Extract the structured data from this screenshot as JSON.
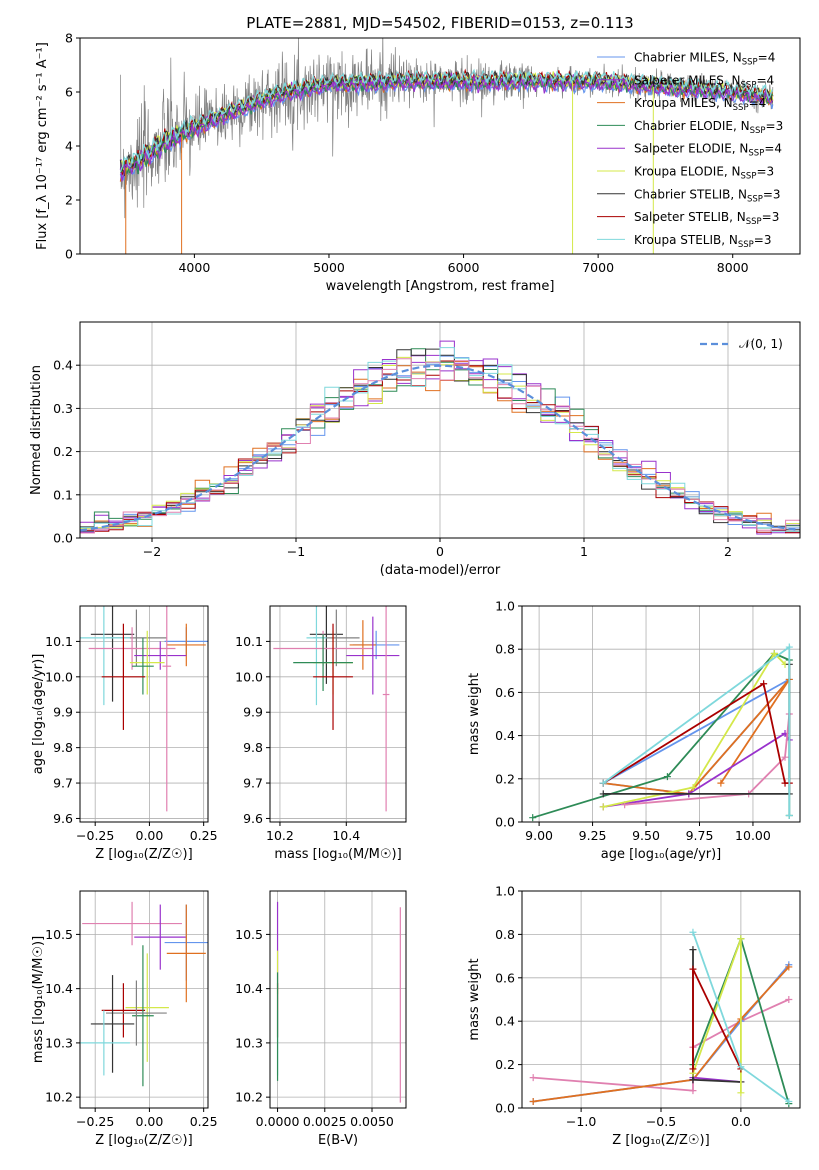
{
  "colors": {
    "chabrier_miles": "#6495ED",
    "salpeter_miles": "#9932CC",
    "kroupa_miles": "#E07020",
    "chabrier_elodie": "#2E8B57",
    "salpeter_elodie": "#9932CC",
    "kroupa_elodie": "#D4E84A",
    "chabrier_stelib": "#333333",
    "salpeter_stelib": "#AA0000",
    "kroupa_stelib": "#7FD8DC",
    "pink": "#E080B0",
    "gray_data": "#808080",
    "normal_curve": "#5B8FDB"
  },
  "chart_data": [
    {
      "id": "spectrum",
      "type": "line",
      "title": "PLATE=2881, MJD=54502, FIBERID=0153, z=0.113",
      "xlabel": "wavelength [Angstrom, rest frame]",
      "ylabel": "Flux [f_λ 10⁻¹⁷ erg cm⁻² s⁻¹ A⁻¹]",
      "xlim": [
        3150,
        8500
      ],
      "ylim": [
        0,
        8
      ],
      "xticks": [
        "4000",
        "5000",
        "6000",
        "7000",
        "8000"
      ],
      "yticks": [
        "0",
        "2",
        "4",
        "6",
        "8"
      ],
      "continuum": {
        "x": [
          3450,
          3600,
          3800,
          4000,
          4300,
          4600,
          5000,
          5500,
          6000,
          6500,
          7000,
          7500,
          8000,
          8300
        ],
        "y": [
          3.1,
          3.5,
          4.2,
          4.7,
          5.3,
          5.9,
          6.3,
          6.4,
          6.4,
          6.4,
          6.4,
          6.2,
          6.0,
          5.8
        ]
      },
      "legend": [
        {
          "label": "Chabrier MILES, N",
          "sub": "SSP",
          "eq": "=4"
        },
        {
          "label": "Salpeter MILES, N",
          "sub": "SSP",
          "eq": "=4"
        },
        {
          "label": "Kroupa MILES, N",
          "sub": "SSP",
          "eq": "=4"
        },
        {
          "label": "Chabrier ELODIE, N",
          "sub": "SSP",
          "eq": "=3"
        },
        {
          "label": "Salpeter ELODIE, N",
          "sub": "SSP",
          "eq": "=4"
        },
        {
          "label": "Kroupa ELODIE, N",
          "sub": "SSP",
          "eq": "=3"
        },
        {
          "label": "Chabrier STELIB, N",
          "sub": "SSP",
          "eq": "=3"
        },
        {
          "label": "Salpeter STELIB, N",
          "sub": "SSP",
          "eq": "=3"
        },
        {
          "label": "Kroupa STELIB, N",
          "sub": "SSP",
          "eq": "=3"
        }
      ],
      "legend_position": "right"
    },
    {
      "id": "residuals",
      "type": "line",
      "xlabel": "(data-model)/error",
      "ylabel": "Normed distribution",
      "xlim": [
        -2.5,
        2.5
      ],
      "ylim": [
        0,
        0.5
      ],
      "xticks": [
        "−2",
        "−1",
        "0",
        "1",
        "2"
      ],
      "yticks": [
        "0.0",
        "0.1",
        "0.2",
        "0.3",
        "0.4"
      ],
      "legend": "𝒩(0, 1)",
      "legend_position": "top-right",
      "grid": true
    },
    {
      "id": "age_vs_Z",
      "type": "scatter",
      "xlabel": "Z [log₁₀(Z/Z☉)]",
      "ylabel": "age  [log₁₀(age/yr)]",
      "xlim": [
        -0.32,
        0.27
      ],
      "ylim": [
        9.59,
        10.2
      ],
      "xticks": [
        "−0.25",
        "0.00",
        "0.25"
      ],
      "yticks": [
        "9.6",
        "9.7",
        "9.8",
        "9.9",
        "10.0",
        "10.1"
      ],
      "points": [
        {
          "x": -0.17,
          "xerr": 0.1,
          "y": 10.12,
          "yerr": 0.19,
          "c": "#333333"
        },
        {
          "x": -0.06,
          "xerr": 0.14,
          "y": 10.11,
          "yerr": 0.08,
          "c": "#808080"
        },
        {
          "x": -0.21,
          "xerr": 0.12,
          "y": 10.11,
          "yerr": 0.19,
          "c": "#7FD8DC"
        },
        {
          "x": 0.17,
          "xerr": 0.1,
          "y": 10.1,
          "yerr": 0.04,
          "c": "#6495ED"
        },
        {
          "x": 0.17,
          "xerr": 0.09,
          "y": 10.09,
          "yerr": 0.06,
          "c": "#E07020"
        },
        {
          "x": -0.08,
          "xerr": 0.2,
          "y": 10.08,
          "yerr": 0.06,
          "c": "#E080B0"
        },
        {
          "x": 0.05,
          "xerr": 0.12,
          "y": 10.06,
          "yerr": 0.04,
          "c": "#9932CC"
        },
        {
          "x": -0.01,
          "xerr": 0.08,
          "y": 10.04,
          "yerr": 0.09,
          "c": "#D4E84A"
        },
        {
          "x": -0.03,
          "xerr": 0.05,
          "y": 10.03,
          "yerr": 0.08,
          "c": "#2E8B57"
        },
        {
          "x": -0.12,
          "xerr": 0.1,
          "y": 10.0,
          "yerr": 0.15,
          "c": "#AA0000"
        },
        {
          "x": 0.08,
          "xerr": 0.02,
          "y": 10.03,
          "yerr": 0.41,
          "c": "#E080B0"
        }
      ],
      "grid": true
    },
    {
      "id": "age_vs_mass",
      "type": "scatter",
      "xlabel": "mass [log₁₀(M/M☉)]",
      "ylabel": "",
      "xlim": [
        10.17,
        10.58
      ],
      "ylim": [
        9.59,
        10.2
      ],
      "xticks": [
        "10.2",
        "10.4"
      ],
      "yticks": [
        "9.6",
        "9.7",
        "9.8",
        "9.9",
        "10.0",
        "10.1"
      ],
      "points": [
        {
          "x": 10.34,
          "xerr": 0.05,
          "y": 10.12,
          "yerr": 0.14,
          "c": "#333333"
        },
        {
          "x": 10.37,
          "xerr": 0.07,
          "y": 10.11,
          "yerr": 0.08,
          "c": "#808080"
        },
        {
          "x": 10.31,
          "xerr": 0.03,
          "y": 10.11,
          "yerr": 0.19,
          "c": "#7FD8DC"
        },
        {
          "x": 10.49,
          "xerr": 0.07,
          "y": 10.09,
          "yerr": 0.04,
          "c": "#6495ED"
        },
        {
          "x": 10.45,
          "xerr": 0.04,
          "y": 10.09,
          "yerr": 0.07,
          "c": "#E07020"
        },
        {
          "x": 10.33,
          "xerr": 0.15,
          "y": 10.08,
          "yerr": 0.05,
          "c": "#E080B0"
        },
        {
          "x": 10.48,
          "xerr": 0.08,
          "y": 10.06,
          "yerr": 0.11,
          "c": "#9932CC"
        },
        {
          "x": 10.36,
          "xerr": 0.06,
          "y": 10.04,
          "yerr": 0.09,
          "c": "#D4E84A"
        },
        {
          "x": 10.33,
          "xerr": 0.09,
          "y": 10.04,
          "yerr": 0.08,
          "c": "#2E8B57"
        },
        {
          "x": 10.36,
          "xerr": 0.06,
          "y": 10.0,
          "yerr": 0.15,
          "c": "#AA0000"
        },
        {
          "x": 10.52,
          "xerr": 0.01,
          "y": 9.95,
          "yerr": 0.33,
          "c": "#E080B0"
        }
      ],
      "grid": true
    },
    {
      "id": "mass_weight_vs_age",
      "type": "line",
      "xlabel": "age  [log₁₀(age/yr)]",
      "ylabel": "mass weight",
      "xlim": [
        8.92,
        10.22
      ],
      "ylim": [
        0,
        1
      ],
      "xticks": [
        "9.00",
        "9.25",
        "9.50",
        "9.75",
        "10.00"
      ],
      "yticks": [
        "0.0",
        "0.2",
        "0.4",
        "0.6",
        "0.8",
        "1.0"
      ],
      "series": [
        {
          "c": "#6495ED",
          "x": [
            9.3,
            9.7,
            10.17,
            9.3
          ],
          "y": [
            0.18,
            0.13,
            0.66,
            0.18
          ]
        },
        {
          "c": "#E07020",
          "x": [
            9.3,
            9.7,
            10.17,
            9.85
          ],
          "y": [
            0.18,
            0.13,
            0.66,
            0.18
          ]
        },
        {
          "c": "#9932CC",
          "x": [
            9.3,
            9.7,
            10.15,
            10.17
          ],
          "y": [
            0.07,
            0.13,
            0.41,
            0.38
          ]
        },
        {
          "c": "#E080B0",
          "x": [
            9.4,
            9.98,
            10.15,
            10.17
          ],
          "y": [
            0.08,
            0.13,
            0.3,
            0.5
          ]
        },
        {
          "c": "#2E8B57",
          "x": [
            8.97,
            9.6,
            10.1,
            10.17,
            10.17
          ],
          "y": [
            0.02,
            0.21,
            0.78,
            0.75,
            0.03
          ]
        },
        {
          "c": "#D4E84A",
          "x": [
            9.3,
            9.72,
            10.1,
            10.15
          ],
          "y": [
            0.07,
            0.16,
            0.78,
            0.73
          ]
        },
        {
          "c": "#333333",
          "x": [
            9.3,
            10.17,
            10.17
          ],
          "y": [
            0.13,
            0.13,
            0.73
          ]
        },
        {
          "c": "#AA0000",
          "x": [
            9.3,
            10.05,
            10.15,
            10.17
          ],
          "y": [
            0.18,
            0.64,
            0.18,
            0.18
          ]
        },
        {
          "c": "#7FD8DC",
          "x": [
            9.3,
            10.17,
            10.17
          ],
          "y": [
            0.18,
            0.81,
            0.03
          ]
        }
      ],
      "grid": true
    },
    {
      "id": "mass_vs_Z",
      "type": "scatter",
      "xlabel": "Z [log₁₀(Z/Z☉)]",
      "ylabel": "mass [log₁₀(M/M☉)]",
      "xlim": [
        -0.32,
        0.27
      ],
      "ylim": [
        10.18,
        10.58
      ],
      "xticks": [
        "−0.25",
        "0.00",
        "0.25"
      ],
      "yticks": [
        "10.2",
        "10.3",
        "10.4",
        "10.5"
      ],
      "points": [
        {
          "x": -0.08,
          "xerr": 0.23,
          "y": 10.52,
          "yerr": 0.04,
          "c": "#E080B0"
        },
        {
          "x": 0.05,
          "xerr": 0.12,
          "y": 10.495,
          "yerr": 0.06,
          "c": "#9932CC"
        },
        {
          "x": 0.17,
          "xerr": 0.1,
          "y": 10.485,
          "yerr": 0.07,
          "c": "#6495ED"
        },
        {
          "x": 0.17,
          "xerr": 0.09,
          "y": 10.465,
          "yerr": 0.09,
          "c": "#E07020"
        },
        {
          "x": -0.01,
          "xerr": 0.1,
          "y": 10.365,
          "yerr": 0.1,
          "c": "#D4E84A"
        },
        {
          "x": -0.12,
          "xerr": 0.1,
          "y": 10.36,
          "yerr": 0.05,
          "c": "#AA0000"
        },
        {
          "x": -0.03,
          "xerr": 0.05,
          "y": 10.35,
          "yerr": 0.13,
          "c": "#2E8B57"
        },
        {
          "x": -0.06,
          "xerr": 0.14,
          "y": 10.355,
          "yerr": 0.06,
          "c": "#808080"
        },
        {
          "x": -0.17,
          "xerr": 0.1,
          "y": 10.335,
          "yerr": 0.09,
          "c": "#333333"
        },
        {
          "x": -0.21,
          "xerr": 0.12,
          "y": 10.3,
          "yerr": 0.06,
          "c": "#7FD8DC"
        }
      ],
      "grid": true
    },
    {
      "id": "mass_vs_ebv",
      "type": "scatter",
      "xlabel": "E(B-V)",
      "ylabel": "",
      "xlim": [
        -0.0004,
        0.0068
      ],
      "ylim": [
        10.18,
        10.58
      ],
      "xticks": [
        "0.0000",
        "0.0025",
        "0.0050"
      ],
      "yticks": [
        "10.2",
        "10.3",
        "10.4",
        "10.5"
      ],
      "points": [
        {
          "x": 0.0,
          "xerr": 0,
          "y": 10.48,
          "yerr": 0.08,
          "c": "#9932CC"
        },
        {
          "x": 0.0,
          "xerr": 0,
          "y": 10.43,
          "yerr": 0.04,
          "c": "#D4E84A"
        },
        {
          "x": 0.0,
          "xerr": 0,
          "y": 10.36,
          "yerr": 0.05,
          "c": "#AA0000"
        },
        {
          "x": 0.0,
          "xerr": 0,
          "y": 10.3,
          "yerr": 0.06,
          "c": "#7FD8DC"
        },
        {
          "x": 0.0,
          "xerr": 0,
          "y": 10.33,
          "yerr": 0.1,
          "c": "#2E8B57"
        },
        {
          "x": 0.0065,
          "xerr": 0,
          "y": 10.37,
          "yerr": 0.18,
          "c": "#E080B0"
        }
      ],
      "grid": true
    },
    {
      "id": "mass_weight_vs_Z",
      "type": "line",
      "xlabel": "Z [log₁₀(Z/Z☉)]",
      "ylabel": "mass weight",
      "xlim": [
        -1.37,
        0.37
      ],
      "ylim": [
        0,
        1
      ],
      "xticks": [
        "−1.0",
        "−0.5",
        "0.0"
      ],
      "yticks": [
        "0.0",
        "0.2",
        "0.4",
        "0.6",
        "0.8",
        "1.0"
      ],
      "series": [
        {
          "c": "#E080B0",
          "x": [
            -1.3,
            -0.3,
            -0.3,
            0.0,
            0.3
          ],
          "y": [
            0.14,
            0.08,
            0.28,
            0.4,
            0.5
          ]
        },
        {
          "c": "#6495ED",
          "x": [
            -1.3,
            -0.3,
            0.0,
            0.3
          ],
          "y": [
            0.03,
            0.13,
            0.4,
            0.66
          ]
        },
        {
          "c": "#E07020",
          "x": [
            -1.3,
            -0.3,
            0.0,
            0.3
          ],
          "y": [
            0.03,
            0.13,
            0.41,
            0.65
          ]
        },
        {
          "c": "#9932CC",
          "x": [
            -0.3,
            -0.3,
            0.0
          ],
          "y": [
            0.13,
            0.14,
            0.12
          ]
        },
        {
          "c": "#333333",
          "x": [
            -0.3,
            -0.3,
            0.0
          ],
          "y": [
            0.73,
            0.13,
            0.12
          ]
        },
        {
          "c": "#2E8B57",
          "x": [
            -0.3,
            0.0,
            0.3
          ],
          "y": [
            0.2,
            0.78,
            0.02
          ]
        },
        {
          "c": "#D4E84A",
          "x": [
            -0.3,
            0.0,
            0.0
          ],
          "y": [
            0.16,
            0.78,
            0.07
          ]
        },
        {
          "c": "#AA0000",
          "x": [
            -0.3,
            -0.3,
            0.0
          ],
          "y": [
            0.18,
            0.64,
            0.18
          ]
        },
        {
          "c": "#7FD8DC",
          "x": [
            -0.3,
            0.0,
            0.3
          ],
          "y": [
            0.81,
            0.19,
            0.03
          ]
        }
      ],
      "grid": true
    }
  ]
}
